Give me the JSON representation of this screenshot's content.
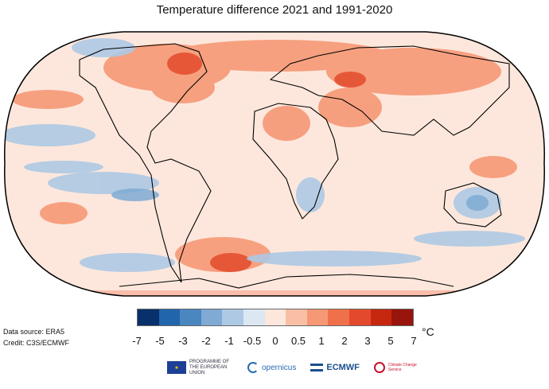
{
  "title": "Temperature difference 2021 and 1991-2020",
  "source": {
    "line1": "Data source: ERA5",
    "line2": "Credit: C3S/ECMWF"
  },
  "colorbar": {
    "colors": [
      "#08306b",
      "#2166ac",
      "#4a86c0",
      "#7eaad3",
      "#adc9e4",
      "#dbe7f3",
      "#fde7dc",
      "#f9bfa5",
      "#f69875",
      "#f0704a",
      "#e34a2b",
      "#c5280f",
      "#99140a"
    ],
    "ticks": [
      "-7",
      "-5",
      "-3",
      "-2",
      "-1",
      "-0.5",
      "0",
      "0.5",
      "1",
      "2",
      "3",
      "5",
      "7"
    ],
    "unit": "°C"
  },
  "map": {
    "ocean_base_color": "#fde7dc",
    "coastline_color": "#000000"
  },
  "logos": {
    "eu": "PROGRAMME OF THE EUROPEAN UNION",
    "copernicus": "opernicus",
    "ecmwf": "ECMWF",
    "c3s": "Climate Change Service"
  }
}
